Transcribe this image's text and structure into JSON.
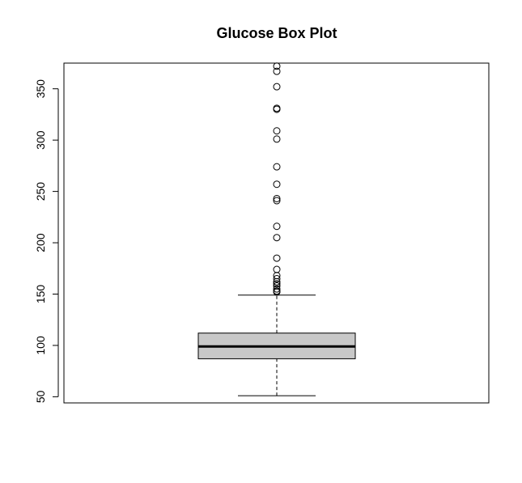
{
  "chart_data": {
    "type": "box",
    "title": "Glucose Box Plot",
    "xlabel": "",
    "ylabel": "",
    "ylim": [
      44,
      375
    ],
    "yticks": [
      50,
      100,
      150,
      200,
      250,
      300,
      350
    ],
    "ytick_labels": [
      "50",
      "100",
      "150",
      "200",
      "250",
      "300",
      "350"
    ],
    "grid": false,
    "box": {
      "whisker_low": 51,
      "q1": 87,
      "median": 99,
      "q3": 112,
      "whisker_high": 149,
      "fill": "#c8c8c8"
    },
    "outliers": [
      152,
      153,
      155,
      158,
      160,
      162,
      165,
      168,
      174,
      185,
      205,
      216,
      241,
      243,
      257,
      274,
      301,
      309,
      330,
      331,
      352,
      367,
      372
    ]
  }
}
